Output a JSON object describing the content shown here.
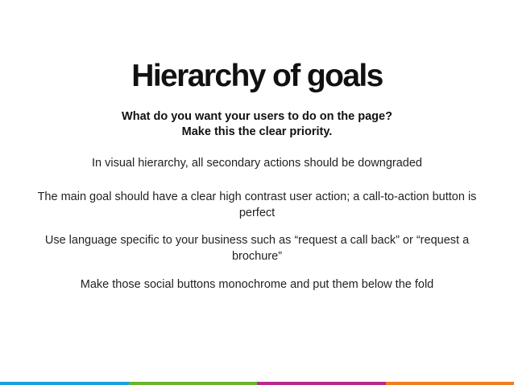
{
  "slide": {
    "title": "Hierarchy of goals",
    "subtitle": {
      "line1": "What do you want your users to do on the page?",
      "line2": "Make this the clear priority."
    },
    "paragraphs": [
      "In visual hierarchy, all secondary actions should be downgraded",
      "The main goal should have a clear high contrast user action; a call-to-action button is perfect",
      "Use language specific to your business such as “request a call back” or “request a brochure”",
      "Make those social buttons monochrome and put them below the fold"
    ]
  },
  "footer_colors": [
    "#1aa1db",
    "#6ab42d",
    "#b8288f",
    "#f37b20"
  ]
}
